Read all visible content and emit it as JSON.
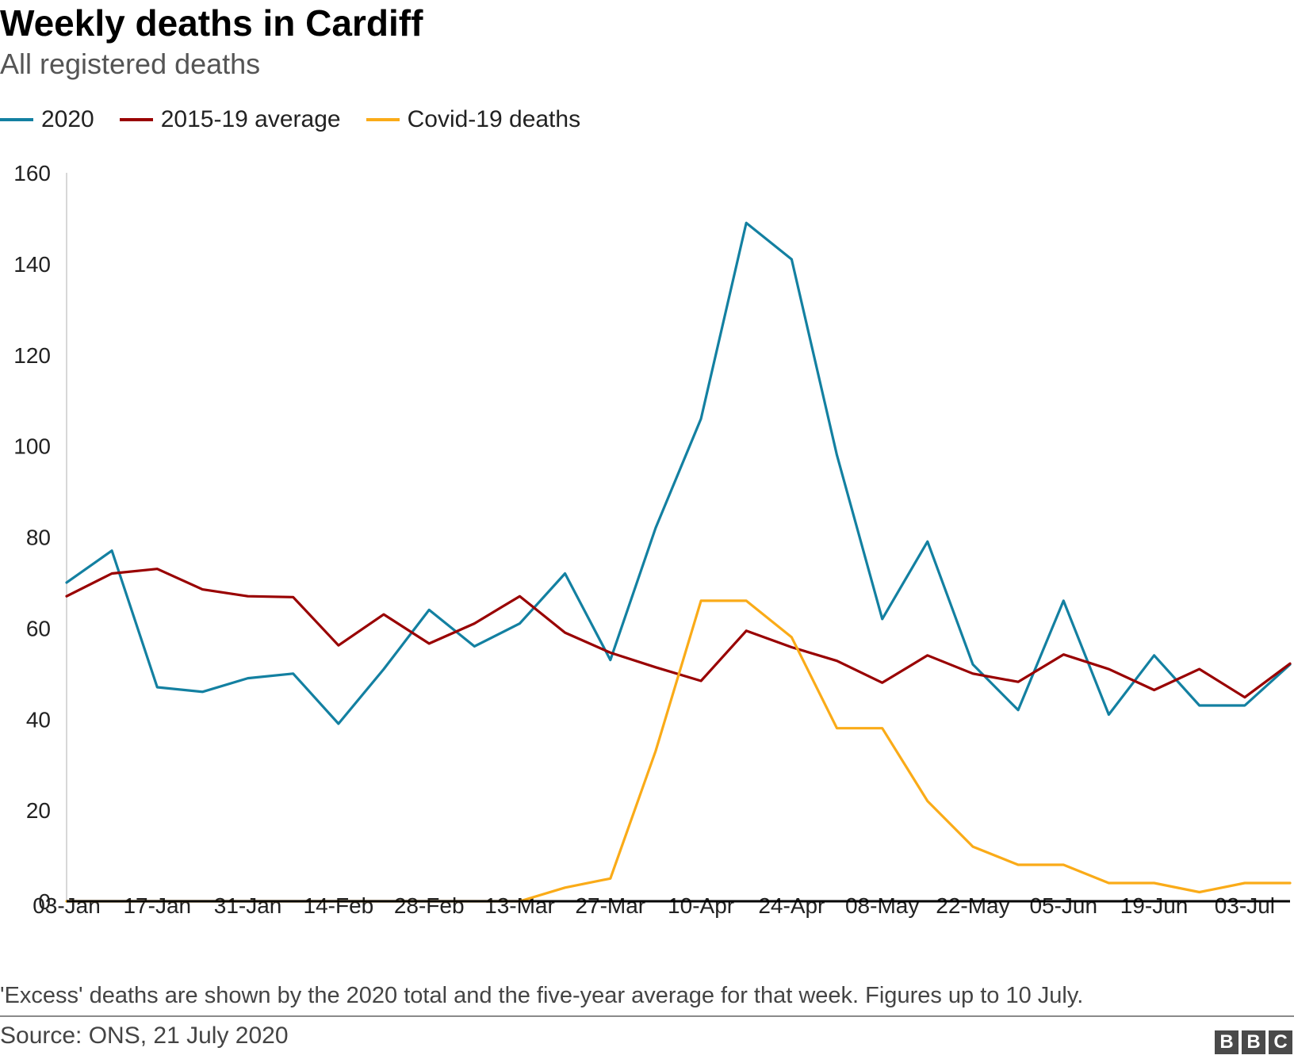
{
  "header": {
    "title": "Weekly deaths in Cardiff",
    "subtitle": "All registered deaths"
  },
  "legend": [
    {
      "label": "2020",
      "color": "#1380A1"
    },
    {
      "label": "2015-19 average",
      "color": "#990000"
    },
    {
      "label": "Covid-19 deaths",
      "color": "#FAAB18"
    }
  ],
  "chart_data": {
    "type": "line",
    "title": "Weekly deaths in Cardiff",
    "subtitle": "All registered deaths",
    "xlabel": "",
    "ylabel": "",
    "ylim": [
      0,
      160
    ],
    "yticks": [
      0,
      20,
      40,
      60,
      80,
      100,
      120,
      140,
      160
    ],
    "x": [
      "03-Jan",
      "10-Jan",
      "17-Jan",
      "24-Jan",
      "31-Jan",
      "07-Feb",
      "14-Feb",
      "21-Feb",
      "28-Feb",
      "06-Mar",
      "13-Mar",
      "20-Mar",
      "27-Mar",
      "03-Apr",
      "10-Apr",
      "17-Apr",
      "24-Apr",
      "01-May",
      "08-May",
      "15-May",
      "22-May",
      "29-May",
      "05-Jun",
      "12-Jun",
      "19-Jun",
      "26-Jun",
      "03-Jul",
      "10-Jul"
    ],
    "xtick_labels": [
      "03-Jan",
      "17-Jan",
      "31-Jan",
      "14-Feb",
      "28-Feb",
      "13-Mar",
      "27-Mar",
      "10-Apr",
      "24-Apr",
      "08-May",
      "22-May",
      "05-Jun",
      "19-Jun",
      "03-Jul"
    ],
    "grid": false,
    "legend_position": "top-left",
    "series": [
      {
        "name": "2020",
        "color": "#1380A1",
        "values": [
          70,
          77,
          47,
          46,
          49,
          50,
          39,
          51,
          64,
          56,
          61,
          72,
          53,
          82,
          106,
          149,
          141,
          98,
          62,
          79,
          52,
          42,
          66,
          41,
          54,
          43,
          43,
          52
        ]
      },
      {
        "name": "2015-19 average",
        "color": "#990000",
        "values": [
          67,
          72,
          73,
          68.5,
          67,
          66.8,
          56.2,
          63,
          56.6,
          61,
          67,
          59,
          54.6,
          51.4,
          48.4,
          59.4,
          55.8,
          52.8,
          48,
          54,
          50,
          48.2,
          54.2,
          51,
          46.4,
          51,
          44.8,
          52.2
        ]
      },
      {
        "name": "Covid-19 deaths",
        "color": "#FAAB18",
        "values": [
          0,
          0,
          0,
          0,
          0,
          0,
          0,
          0,
          0,
          0,
          0,
          3,
          5,
          33,
          66,
          66,
          58,
          38,
          38,
          22,
          12,
          8,
          8,
          4,
          4,
          2,
          4,
          4
        ]
      }
    ]
  },
  "footer": {
    "note": "'Excess' deaths are shown by the 2020 total and the five-year average for that week. Figures up to 10 July.",
    "source": "Source: ONS, 21 July 2020",
    "logo_letters": [
      "B",
      "B",
      "C"
    ]
  }
}
